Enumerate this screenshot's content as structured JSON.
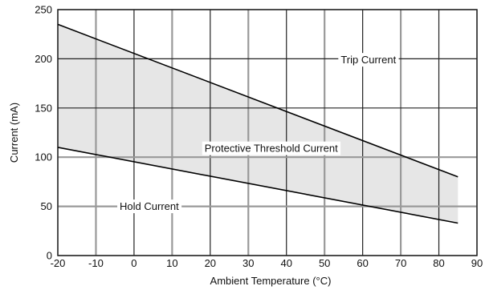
{
  "chart_data": {
    "type": "line",
    "xlabel": "Ambient Temperature (°C)",
    "ylabel": "Current (mA)",
    "xlim": [
      -20,
      90
    ],
    "ylim": [
      0,
      250
    ],
    "xticks": [
      -20,
      -10,
      0,
      10,
      20,
      30,
      40,
      50,
      60,
      70,
      80,
      90
    ],
    "yticks": [
      0,
      50,
      100,
      150,
      200,
      250
    ],
    "grid": true,
    "series": [
      {
        "name": "Trip Current",
        "x": [
          -20,
          85
        ],
        "y": [
          235,
          80
        ]
      },
      {
        "name": "Hold Current",
        "x": [
          -20,
          85
        ],
        "y": [
          110,
          33
        ]
      }
    ],
    "shaded_region": {
      "label": "Protective Threshold Current",
      "between": [
        "Trip Current",
        "Hold Current"
      ],
      "color": "#e6e6e6"
    },
    "annotations": [
      {
        "text": "Trip Current",
        "x": 61.5,
        "y": 199
      },
      {
        "text": "Protective Threshold Current",
        "x": 36,
        "y": 109
      },
      {
        "text": "Hold Current",
        "x": 4,
        "y": 50
      }
    ],
    "colors": {
      "line": "#000000",
      "grid_major": "#222222",
      "grid_minor": "#999999",
      "fill": "#e6e6e6"
    }
  }
}
